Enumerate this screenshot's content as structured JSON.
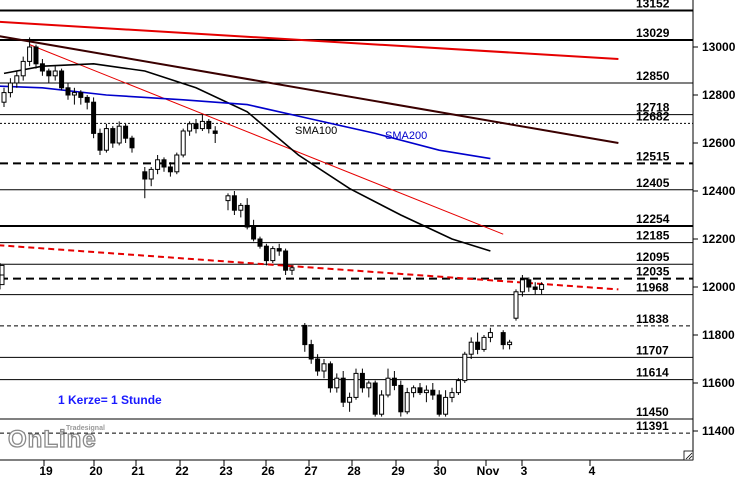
{
  "chart_data": {
    "type": "candlestick",
    "ylim": [
      11350,
      13180
    ],
    "y_ticks": [
      11400,
      11600,
      11800,
      12000,
      12200,
      12400,
      12600,
      12800,
      13000
    ],
    "x_labels": [
      "19",
      "20",
      "21",
      "22",
      "23",
      "26",
      "27",
      "28",
      "29",
      "30",
      "Nov",
      "3",
      "4"
    ],
    "horizontal_levels": [
      {
        "label": "13152",
        "value": 13152,
        "style": "solid-thick"
      },
      {
        "label": "13029",
        "value": 13029,
        "style": "solid-thick"
      },
      {
        "label": "12850",
        "value": 12850,
        "style": "solid"
      },
      {
        "label": "12718",
        "value": 12718,
        "style": "solid"
      },
      {
        "label": "12682",
        "value": 12682,
        "style": "dotted"
      },
      {
        "label": "12515",
        "value": 12515,
        "style": "dashed-thick"
      },
      {
        "label": "12405",
        "value": 12405,
        "style": "solid"
      },
      {
        "label": "12254",
        "value": 12254,
        "style": "solid-thick"
      },
      {
        "label": "12185",
        "value": 12185,
        "style": "solid"
      },
      {
        "label": "12095",
        "value": 12095,
        "style": "solid"
      },
      {
        "label": "12035",
        "value": 12035,
        "style": "dashed-thick"
      },
      {
        "label": "11968",
        "value": 11968,
        "style": "solid"
      },
      {
        "label": "11838",
        "value": 11838,
        "style": "dashed"
      },
      {
        "label": "11707",
        "value": 11707,
        "style": "solid"
      },
      {
        "label": "11614",
        "value": 11614,
        "style": "solid"
      },
      {
        "label": "11450",
        "value": 11450,
        "style": "solid"
      },
      {
        "label": "11391",
        "value": 11391,
        "style": "dashed"
      }
    ],
    "candles": [
      [
        12770,
        12830,
        12750,
        12810
      ],
      [
        12810,
        12870,
        12790,
        12850
      ],
      [
        12850,
        12900,
        12830,
        12880
      ],
      [
        12880,
        12960,
        12860,
        12940
      ],
      [
        12940,
        13040,
        12920,
        13000
      ],
      [
        13000,
        13010,
        12910,
        12930
      ],
      [
        12930,
        12950,
        12880,
        12900
      ],
      [
        12900,
        12910,
        12850,
        12880
      ],
      [
        12880,
        12920,
        12860,
        12900
      ],
      [
        12900,
        12910,
        12820,
        12830
      ],
      [
        12830,
        12850,
        12780,
        12800
      ],
      [
        12800,
        12830,
        12760,
        12810
      ],
      [
        12810,
        12820,
        12760,
        12790
      ],
      [
        12790,
        12800,
        12740,
        12770
      ],
      [
        12770,
        12790,
        12620,
        12640
      ],
      [
        12640,
        12660,
        12550,
        12570
      ],
      [
        12570,
        12680,
        12560,
        12660
      ],
      [
        12660,
        12670,
        12580,
        12600
      ],
      [
        12600,
        12690,
        12590,
        12670
      ],
      [
        12670,
        12680,
        12600,
        12620
      ],
      [
        12620,
        12630,
        12560,
        12580
      ],
      [
        12480,
        12500,
        12370,
        12450
      ],
      [
        12450,
        12500,
        12420,
        12490
      ],
      [
        12490,
        12550,
        12470,
        12530
      ],
      [
        12530,
        12540,
        12480,
        12500
      ],
      [
        12500,
        12520,
        12460,
        12480
      ],
      [
        12480,
        12560,
        12470,
        12550
      ],
      [
        12550,
        12660,
        12540,
        12650
      ],
      [
        12650,
        12690,
        12630,
        12680
      ],
      [
        12680,
        12700,
        12640,
        12660
      ],
      [
        12660,
        12720,
        12650,
        12690
      ],
      [
        12690,
        12700,
        12640,
        12660
      ],
      [
        12650,
        12670,
        12600,
        12640
      ],
      [
        12360,
        12390,
        12320,
        12380
      ],
      [
        12380,
        12400,
        12300,
        12320
      ],
      [
        12320,
        12350,
        12290,
        12340
      ],
      [
        12340,
        12370,
        12240,
        12250
      ],
      [
        12250,
        12280,
        12190,
        12200
      ],
      [
        12200,
        12210,
        12160,
        12170
      ],
      [
        12170,
        12180,
        12090,
        12110
      ],
      [
        12110,
        12170,
        12100,
        12160
      ],
      [
        12160,
        12180,
        12130,
        12150
      ],
      [
        12150,
        12160,
        12050,
        12070
      ],
      [
        12070,
        12090,
        12050,
        12080
      ],
      [
        11840,
        11850,
        11730,
        11760
      ],
      [
        11760,
        11780,
        11680,
        11700
      ],
      [
        11700,
        11720,
        11630,
        11650
      ],
      [
        11650,
        11700,
        11620,
        11680
      ],
      [
        11680,
        11690,
        11560,
        11580
      ],
      [
        11580,
        11640,
        11560,
        11620
      ],
      [
        11620,
        11650,
        11500,
        11520
      ],
      [
        11520,
        11560,
        11480,
        11540
      ],
      [
        11540,
        11660,
        11530,
        11640
      ],
      [
        11640,
        11660,
        11560,
        11580
      ],
      [
        11580,
        11610,
        11540,
        11600
      ],
      [
        11600,
        11610,
        11460,
        11470
      ],
      [
        11470,
        11570,
        11460,
        11550
      ],
      [
        11550,
        11660,
        11540,
        11620
      ],
      [
        11620,
        11650,
        11570,
        11590
      ],
      [
        11590,
        11610,
        11460,
        11480
      ],
      [
        11480,
        11580,
        11470,
        11560
      ],
      [
        11560,
        11590,
        11540,
        11580
      ],
      [
        11580,
        11600,
        11550,
        11560
      ],
      [
        11560,
        11590,
        11520,
        11570
      ],
      [
        11570,
        11600,
        11530,
        11550
      ],
      [
        11550,
        11570,
        11460,
        11470
      ],
      [
        11470,
        11570,
        11460,
        11540
      ],
      [
        11540,
        11580,
        11520,
        11560
      ],
      [
        11560,
        11620,
        11550,
        11610
      ],
      [
        11610,
        11730,
        11600,
        11720
      ],
      [
        11720,
        11790,
        11700,
        11770
      ],
      [
        11770,
        11810,
        11720,
        11740
      ],
      [
        11740,
        11800,
        11730,
        11790
      ],
      [
        11790,
        11830,
        11770,
        11810
      ],
      [
        11810,
        11820,
        11740,
        11760
      ],
      [
        11760,
        11780,
        11740,
        11770
      ],
      [
        11870,
        11990,
        11860,
        11980
      ],
      [
        11980,
        12050,
        11960,
        12030
      ],
      [
        12030,
        12040,
        11980,
        12000
      ],
      [
        12000,
        12020,
        11970,
        11990
      ],
      [
        11990,
        12020,
        11970,
        12010
      ],
      [
        12010,
        12060,
        11990,
        12050
      ],
      [
        12050,
        12100,
        12030,
        12090
      ]
    ],
    "candle_slots": [
      0,
      1,
      2,
      3,
      4,
      5,
      6,
      7,
      8,
      9,
      10,
      11,
      12,
      13,
      14,
      15,
      16,
      17,
      18,
      19,
      20,
      22,
      23,
      24,
      25,
      26,
      27,
      28,
      29,
      30,
      31,
      32,
      33,
      35,
      36,
      37,
      38,
      39,
      40,
      41,
      42,
      43,
      44,
      45,
      47,
      48,
      49,
      50,
      51,
      52,
      53,
      54,
      55,
      56,
      57,
      58,
      59,
      60,
      61,
      62,
      63,
      64,
      65,
      66,
      67,
      68,
      69,
      70,
      71,
      72,
      73,
      74,
      75,
      76,
      78,
      79,
      80,
      81,
      82,
      83,
      84
    ],
    "series": [
      {
        "name": "SMA100",
        "color": "#000000",
        "values": [
          [
            0,
            12890
          ],
          [
            6,
            12920
          ],
          [
            14,
            12930
          ],
          [
            22,
            12900
          ],
          [
            30,
            12830
          ],
          [
            38,
            12730
          ],
          [
            46,
            12550
          ],
          [
            54,
            12410
          ],
          [
            62,
            12300
          ],
          [
            70,
            12200
          ],
          [
            76,
            12150
          ]
        ]
      },
      {
        "name": "SMA200",
        "color": "#0000cc",
        "values": [
          [
            -4,
            12840
          ],
          [
            6,
            12830
          ],
          [
            16,
            12800
          ],
          [
            28,
            12780
          ],
          [
            38,
            12760
          ],
          [
            48,
            12700
          ],
          [
            58,
            12640
          ],
          [
            68,
            12570
          ],
          [
            76,
            12535
          ]
        ]
      }
    ],
    "trendlines": [
      {
        "color": "#e60000",
        "width": 2,
        "style": "solid",
        "from": [
          -4,
          13110
        ],
        "to": [
          96,
          12950
        ]
      },
      {
        "color": "#3a0000",
        "width": 2,
        "style": "solid",
        "from": [
          -4,
          13060
        ],
        "to": [
          96,
          12600
        ]
      },
      {
        "color": "#e60000",
        "width": 1,
        "style": "solid",
        "from": [
          4,
          13010
        ],
        "to": [
          78,
          12220
        ]
      },
      {
        "color": "#e60000",
        "width": 2,
        "style": "dashed",
        "from": [
          -4,
          12180
        ],
        "to": [
          96,
          11990
        ]
      }
    ],
    "annotation": "1 Kerze= 1 Stunde"
  },
  "logo": {
    "text": "OnLine",
    "brand": "Tradesignal"
  },
  "colors": {
    "candle": "#000000",
    "level_line": "#000000",
    "background": "#ffffff",
    "note": "#1a1aff"
  }
}
